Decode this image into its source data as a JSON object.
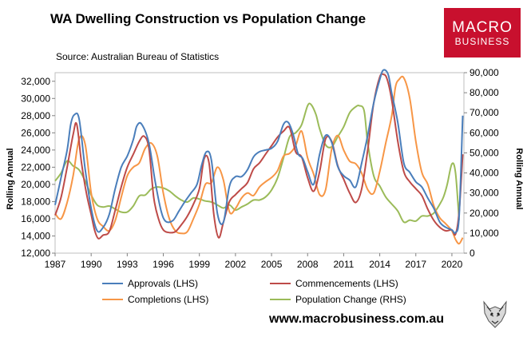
{
  "chart_data": {
    "type": "line",
    "title": "WA Dwelling Construction vs Population Change",
    "subtitle": "Source: Australian Bureau of Statistics",
    "ylabel": "Rolling Annual",
    "y2label": "Rolling Annual",
    "ylim": [
      12000,
      33000
    ],
    "y2lim": [
      0,
      90000
    ],
    "xlim": [
      1987,
      2021
    ],
    "yticks": [
      "12,000",
      "14,000",
      "16,000",
      "18,000",
      "20,000",
      "22,000",
      "24,000",
      "26,000",
      "28,000",
      "30,000",
      "32,000"
    ],
    "y2ticks": [
      "0",
      "10,000",
      "20,000",
      "30,000",
      "40,000",
      "50,000",
      "60,000",
      "70,000",
      "80,000",
      "90,000"
    ],
    "xticks": [
      "1987",
      "1990",
      "1993",
      "1996",
      "1999",
      "2002",
      "2005",
      "2008",
      "2011",
      "2014",
      "2017",
      "2020"
    ],
    "legend": [
      "Approvals (LHS)",
      "Commencements (LHS)",
      "Completions (LHS)",
      "Population Change (RHS)"
    ],
    "series": [
      {
        "name": "Approvals (LHS)",
        "axis": "left",
        "color": "#4a7ebb",
        "x": [
          1987,
          1987.5,
          1988,
          1988.3,
          1988.6,
          1989,
          1989.5,
          1990,
          1990.5,
          1991,
          1991.5,
          1992,
          1992.5,
          1993,
          1993.5,
          1993.8,
          1994.2,
          1994.8,
          1995.3,
          1995.8,
          1996.2,
          1996.8,
          1997.3,
          1997.8,
          1998.3,
          1998.8,
          1999.2,
          1999.6,
          2000,
          2000.5,
          2001,
          2001.5,
          2002,
          2002.5,
          2003,
          2003.5,
          2004,
          2004.5,
          2005,
          2005.5,
          2006,
          2006.4,
          2006.8,
          2007.2,
          2007.6,
          2008,
          2008.5,
          2009,
          2009.5,
          2010,
          2010.5,
          2011,
          2011.5,
          2012,
          2012.5,
          2013,
          2013.5,
          2014,
          2014.3,
          2014.7,
          2015,
          2015.5,
          2016,
          2016.5,
          2017,
          2017.5,
          2018,
          2018.5,
          2019,
          2019.5,
          2020,
          2020.3,
          2020.6,
          2020.9
        ],
        "values": [
          17600,
          20800,
          24000,
          27000,
          28100,
          27600,
          21800,
          17200,
          14600,
          15000,
          16500,
          19500,
          22000,
          23300,
          25200,
          26800,
          27000,
          24800,
          20500,
          17000,
          15700,
          15800,
          16900,
          18000,
          19000,
          20000,
          22300,
          23800,
          22800,
          16600,
          15600,
          19800,
          20900,
          20900,
          21700,
          23200,
          23800,
          24000,
          24200,
          25000,
          27000,
          27200,
          25800,
          23600,
          23000,
          21500,
          20000,
          23500,
          25700,
          24900,
          22100,
          21000,
          20500,
          19700,
          22500,
          25700,
          29500,
          32200,
          33300,
          32800,
          30600,
          27200,
          22500,
          21400,
          20300,
          19700,
          18400,
          17200,
          15600,
          15000,
          14700,
          14400,
          16300,
          28000
        ]
      },
      {
        "name": "Commencements (LHS)",
        "axis": "left",
        "color": "#be4b48",
        "x": [
          1987,
          1987.5,
          1988,
          1988.5,
          1988.8,
          1989.2,
          1989.6,
          1990,
          1990.3,
          1990.6,
          1991,
          1991.5,
          1992,
          1992.5,
          1993,
          1993.5,
          1994,
          1994.4,
          1994.8,
          1995.2,
          1995.6,
          1996,
          1996.5,
          1997,
          1997.5,
          1998,
          1998.5,
          1999,
          1999.4,
          1999.8,
          2000.2,
          2000.6,
          2001,
          2001.5,
          2002,
          2002.5,
          2003,
          2003.5,
          2004,
          2004.5,
          2005,
          2005.5,
          2006,
          2006.5,
          2007,
          2007.5,
          2008,
          2008.5,
          2009,
          2009.5,
          2010,
          2010.5,
          2011,
          2011.5,
          2012,
          2012.5,
          2013,
          2013.5,
          2014,
          2014.3,
          2014.6,
          2015,
          2015.5,
          2016,
          2016.5,
          2017,
          2017.5,
          2018,
          2018.5,
          2019,
          2019.5,
          2020,
          2020.3,
          2020.6,
          2020.9
        ],
        "values": [
          16400,
          18500,
          22000,
          25800,
          27000,
          22500,
          19000,
          16500,
          14600,
          13700,
          14100,
          14500,
          17000,
          19700,
          22000,
          23500,
          25000,
          25600,
          24200,
          18500,
          16000,
          14700,
          14400,
          14500,
          15300,
          16300,
          17700,
          19500,
          23000,
          22500,
          16500,
          13800,
          15600,
          18000,
          18800,
          19500,
          20200,
          21800,
          22500,
          23500,
          24500,
          25500,
          26200,
          26600,
          23800,
          23200,
          20800,
          19200,
          21500,
          25300,
          25000,
          22200,
          20600,
          19000,
          17900,
          19500,
          24000,
          29500,
          32500,
          32800,
          32300,
          29800,
          25000,
          21500,
          20300,
          19500,
          18700,
          17100,
          15800,
          15000,
          14600,
          14700,
          14200,
          16800,
          23500
        ]
      },
      {
        "name": "Completions (LHS)",
        "axis": "left",
        "color": "#f79646",
        "x": [
          1987,
          1987.5,
          1988,
          1988.5,
          1989,
          1989.5,
          1990,
          1990.5,
          1991,
          1991.5,
          1992,
          1992.5,
          1993,
          1993.5,
          1994,
          1994.5,
          1995,
          1995.5,
          1996,
          1996.5,
          1997,
          1997.5,
          1998,
          1998.5,
          1999,
          1999.5,
          2000,
          2000.5,
          2001,
          2001.5,
          2002,
          2002.5,
          2003,
          2003.5,
          2004,
          2004.5,
          2005,
          2005.5,
          2006,
          2006.5,
          2007,
          2007.5,
          2008,
          2008.5,
          2009,
          2009.5,
          2010,
          2010.5,
          2011,
          2011.5,
          2012,
          2012.5,
          2013,
          2013.5,
          2014,
          2014.5,
          2015,
          2015.3,
          2015.6,
          2016,
          2016.5,
          2017,
          2017.5,
          2018,
          2018.5,
          2019,
          2019.5,
          2020,
          2020.3,
          2020.6,
          2020.9
        ],
        "values": [
          16600,
          16000,
          17900,
          21000,
          25300,
          24700,
          19000,
          16000,
          15100,
          14600,
          15800,
          18500,
          21000,
          22000,
          22500,
          24200,
          24800,
          23300,
          19000,
          16000,
          14600,
          14300,
          14500,
          16000,
          17700,
          20000,
          20200,
          22000,
          20500,
          16800,
          17200,
          18400,
          19000,
          18700,
          19700,
          20300,
          20800,
          21600,
          23300,
          23600,
          24500,
          26200,
          23100,
          21200,
          18800,
          19400,
          24100,
          25700,
          24000,
          22700,
          22400,
          21300,
          19400,
          19000,
          21500,
          24800,
          28000,
          31300,
          32200,
          32400,
          30000,
          25000,
          21400,
          20000,
          17500,
          16100,
          15400,
          14600,
          13600,
          13100,
          13800
        ]
      },
      {
        "name": "Population Change (RHS)",
        "axis": "right",
        "color": "#9bbb59",
        "x": [
          1987,
          1987.5,
          1988,
          1988.5,
          1989,
          1989.5,
          1990,
          1990.5,
          1991,
          1991.5,
          1992,
          1992.5,
          1993,
          1993.5,
          1994,
          1994.5,
          1995,
          1995.5,
          1996,
          1996.5,
          1997,
          1997.5,
          1998,
          1998.5,
          1999,
          1999.5,
          2000,
          2000.5,
          2001,
          2001.5,
          2002,
          2002.5,
          2003,
          2003.5,
          2004,
          2004.5,
          2005,
          2005.5,
          2006,
          2006.5,
          2007,
          2007.5,
          2008,
          2008.3,
          2008.7,
          2009,
          2009.5,
          2010,
          2010.5,
          2011,
          2011.5,
          2012,
          2012.3,
          2012.7,
          2013,
          2013.5,
          2014,
          2014.5,
          2015,
          2015.5,
          2016,
          2016.5,
          2017,
          2017.5,
          2018,
          2018.5,
          2019,
          2019.3,
          2019.6,
          2020,
          2020.3,
          2020.6
        ],
        "values": [
          36000,
          40000,
          46000,
          43500,
          41500,
          36000,
          29000,
          24000,
          23000,
          23500,
          22000,
          20500,
          20500,
          23500,
          28500,
          29000,
          32000,
          33000,
          32500,
          31000,
          28500,
          26500,
          25500,
          27500,
          27000,
          26000,
          25500,
          24000,
          22500,
          24000,
          21500,
          23000,
          24500,
          26500,
          26500,
          28000,
          31500,
          37500,
          47500,
          58000,
          60000,
          64000,
          73500,
          74000,
          69000,
          62000,
          54000,
          53000,
          58000,
          63000,
          70000,
          73000,
          73500,
          71000,
          55000,
          38500,
          33500,
          28000,
          24500,
          21000,
          15500,
          16500,
          16000,
          18500,
          18500,
          20000,
          24500,
          28000,
          34000,
          44500,
          40000,
          16500
        ]
      }
    ]
  },
  "header": {
    "title": "WA Dwelling Construction vs Population Change",
    "source": "Source: Australian Bureau of Statistics"
  },
  "logo": {
    "line1": "MACRO",
    "line2": "BUSINESS",
    "color": "#c8102e"
  },
  "footer": {
    "url": "www.macrobusiness.com.au",
    "wolf_icon": "wolf-icon"
  }
}
